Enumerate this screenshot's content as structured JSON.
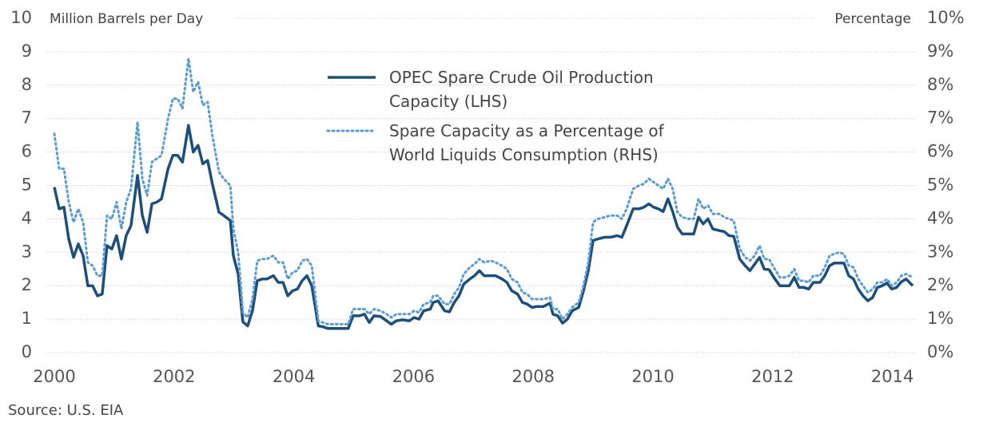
{
  "chart_data": {
    "type": "line",
    "y_label": "Million Barrels per Day",
    "y2_label": "Percentage",
    "source": "Source: U.S. EIA",
    "x": [
      2000,
      2000.08,
      2000.16,
      2000.24,
      2000.32,
      2000.4,
      2000.48,
      2000.56,
      2000.64,
      2000.72,
      2000.8,
      2000.88,
      2000.96,
      2001.04,
      2001.12,
      2001.2,
      2001.28,
      2001.39,
      2001.47,
      2001.55,
      2001.63,
      2001.71,
      2001.79,
      2001.9,
      2001.98,
      2002.06,
      2002.14,
      2002.24,
      2002.32,
      2002.4,
      2002.48,
      2002.56,
      2002.64,
      2002.75,
      2002.83,
      2002.94,
      2002.99,
      2003.07,
      2003.15,
      2003.23,
      2003.31,
      2003.39,
      2003.47,
      2003.55,
      2003.66,
      2003.74,
      2003.82,
      2003.9,
      2003.98,
      2004.06,
      2004.14,
      2004.22,
      2004.3,
      2004.41,
      2004.49,
      2004.57,
      2004.7,
      2004.83,
      2004.91,
      2004.99,
      2005.1,
      2005.18,
      2005.26,
      2005.34,
      2005.45,
      2005.55,
      2005.63,
      2005.71,
      2005.82,
      2005.93,
      2006.01,
      2006.09,
      2006.17,
      2006.28,
      2006.33,
      2006.41,
      2006.52,
      2006.6,
      2006.68,
      2006.76,
      2006.84,
      2006.94,
      2007.02,
      2007.1,
      2007.18,
      2007.29,
      2007.37,
      2007.48,
      2007.56,
      2007.64,
      2007.74,
      2007.82,
      2007.9,
      2007.98,
      2008.06,
      2008.17,
      2008.28,
      2008.33,
      2008.41,
      2008.49,
      2008.57,
      2008.65,
      2008.76,
      2008.84,
      2008.92,
      2009,
      2009.08,
      2009.19,
      2009.29,
      2009.4,
      2009.48,
      2009.56,
      2009.67,
      2009.77,
      2009.85,
      2009.93,
      2010.01,
      2010.09,
      2010.17,
      2010.25,
      2010.33,
      2010.41,
      2010.49,
      2010.6,
      2010.68,
      2010.76,
      2010.84,
      2010.92,
      2011,
      2011.11,
      2011.19,
      2011.27,
      2011.35,
      2011.45,
      2011.54,
      2011.62,
      2011.7,
      2011.78,
      2011.86,
      2011.94,
      2012.02,
      2012.12,
      2012.2,
      2012.28,
      2012.36,
      2012.44,
      2012.52,
      2012.6,
      2012.68,
      2012.79,
      2012.87,
      2012.95,
      2013.03,
      2013.11,
      2013.19,
      2013.27,
      2013.35,
      2013.43,
      2013.51,
      2013.59,
      2013.67,
      2013.75,
      2013.83,
      2013.91,
      2013.99,
      2014.07,
      2014.15,
      2014.23,
      2014.34
    ],
    "series": [
      {
        "name": "OPEC Spare Crude Oil Production Capacity (LHS)",
        "color": "#1d4f7a",
        "dash": "solid",
        "values": [
          4.95,
          4.3,
          4.35,
          3.4,
          2.85,
          3.25,
          2.9,
          2.0,
          2.0,
          1.7,
          1.75,
          3.2,
          3.1,
          3.5,
          2.8,
          3.5,
          3.8,
          5.3,
          4.1,
          3.6,
          4.45,
          4.5,
          4.6,
          5.5,
          5.9,
          5.9,
          5.7,
          6.8,
          6.0,
          6.2,
          5.65,
          5.75,
          5.05,
          4.2,
          4.1,
          3.95,
          2.9,
          2.35,
          0.92,
          0.8,
          1.25,
          2.15,
          2.2,
          2.2,
          2.3,
          2.1,
          2.1,
          1.7,
          1.85,
          1.9,
          2.15,
          2.3,
          2.0,
          0.8,
          0.77,
          0.72,
          0.72,
          0.72,
          0.72,
          1.1,
          1.1,
          1.15,
          0.9,
          1.1,
          1.08,
          0.95,
          0.85,
          0.95,
          0.98,
          0.95,
          1.05,
          1.0,
          1.25,
          1.3,
          1.5,
          1.55,
          1.25,
          1.22,
          1.5,
          1.7,
          2.05,
          2.2,
          2.3,
          2.45,
          2.3,
          2.3,
          2.3,
          2.2,
          2.1,
          1.85,
          1.75,
          1.5,
          1.45,
          1.35,
          1.38,
          1.38,
          1.48,
          1.15,
          1.1,
          0.88,
          1.0,
          1.25,
          1.35,
          1.85,
          2.45,
          3.35,
          3.4,
          3.45,
          3.45,
          3.5,
          3.45,
          3.8,
          4.3,
          4.3,
          4.35,
          4.45,
          4.35,
          4.3,
          4.22,
          4.6,
          4.22,
          3.75,
          3.55,
          3.55,
          3.55,
          4.05,
          3.85,
          4.0,
          3.7,
          3.65,
          3.62,
          3.5,
          3.48,
          2.8,
          2.6,
          2.45,
          2.65,
          2.85,
          2.5,
          2.48,
          2.25,
          2.0,
          2.0,
          2.0,
          2.25,
          1.95,
          1.95,
          1.9,
          2.1,
          2.1,
          2.3,
          2.6,
          2.68,
          2.68,
          2.68,
          2.3,
          2.2,
          1.9,
          1.7,
          1.55,
          1.65,
          1.95,
          2.0,
          2.08,
          1.9,
          1.95,
          2.12,
          2.2,
          2.0
        ]
      },
      {
        "name": "Spare Capacity as a Percentage of World Liquids Consumption (RHS)",
        "color": "#5b9bd5",
        "dash": "dotted",
        "axis": "y2",
        "values": [
          6.55,
          5.5,
          5.5,
          4.5,
          3.9,
          4.3,
          3.9,
          2.7,
          2.6,
          2.3,
          2.3,
          4.1,
          4.0,
          4.5,
          3.7,
          4.5,
          4.9,
          6.9,
          5.2,
          4.7,
          5.7,
          5.8,
          5.9,
          7.0,
          7.6,
          7.6,
          7.3,
          8.8,
          7.8,
          8.1,
          7.4,
          7.5,
          6.5,
          5.4,
          5.2,
          5.0,
          3.7,
          3.0,
          1.2,
          1.05,
          1.6,
          2.75,
          2.8,
          2.8,
          2.9,
          2.7,
          2.7,
          2.2,
          2.4,
          2.45,
          2.75,
          2.8,
          2.6,
          0.95,
          0.9,
          0.85,
          0.85,
          0.85,
          0.85,
          1.3,
          1.3,
          1.3,
          1.15,
          1.3,
          1.25,
          1.15,
          1.05,
          1.15,
          1.15,
          1.15,
          1.25,
          1.2,
          1.45,
          1.5,
          1.7,
          1.7,
          1.45,
          1.45,
          1.75,
          1.95,
          2.35,
          2.55,
          2.65,
          2.8,
          2.7,
          2.75,
          2.7,
          2.6,
          2.5,
          2.2,
          2.1,
          1.8,
          1.75,
          1.6,
          1.6,
          1.6,
          1.65,
          1.3,
          1.3,
          1.0,
          1.15,
          1.35,
          1.5,
          2.0,
          2.7,
          3.9,
          4.0,
          4.05,
          4.1,
          4.1,
          4.0,
          4.3,
          4.9,
          5.0,
          5.05,
          5.2,
          5.1,
          5.0,
          4.9,
          5.2,
          4.9,
          4.2,
          4.05,
          4.0,
          4.0,
          4.6,
          4.3,
          4.4,
          4.15,
          4.15,
          4.05,
          4.0,
          3.95,
          3.1,
          2.85,
          2.75,
          2.9,
          3.2,
          2.8,
          2.8,
          2.55,
          2.25,
          2.25,
          2.3,
          2.5,
          2.15,
          2.15,
          2.1,
          2.3,
          2.3,
          2.55,
          2.9,
          2.95,
          3.0,
          2.95,
          2.6,
          2.55,
          2.2,
          2.0,
          1.8,
          1.9,
          2.1,
          2.1,
          2.2,
          2.0,
          2.1,
          2.3,
          2.35,
          2.25
        ]
      }
    ],
    "xlim": [
      2000,
      2014.4
    ],
    "xticks": [
      2000,
      2002,
      2004,
      2006,
      2008,
      2010,
      2012,
      2014
    ],
    "ylim": [
      0,
      10
    ],
    "yticks": [
      0,
      1,
      2,
      3,
      4,
      5,
      6,
      7,
      8,
      9,
      10
    ],
    "y2lim": [
      0,
      10
    ],
    "y2ticks": [
      {
        "value": 0,
        "label": "0%"
      },
      {
        "value": 1,
        "label": "1%"
      },
      {
        "value": 2,
        "label": "2%"
      },
      {
        "value": 3,
        "label": "3%"
      },
      {
        "value": 4,
        "label": "4%"
      },
      {
        "value": 5,
        "label": "5%"
      },
      {
        "value": 6,
        "label": "6%"
      },
      {
        "value": 7,
        "label": "7%"
      },
      {
        "value": 8,
        "label": "8%"
      },
      {
        "value": 9,
        "label": "9%"
      },
      {
        "value": 10,
        "label": "10%"
      }
    ],
    "grid": true,
    "legend": "top"
  }
}
